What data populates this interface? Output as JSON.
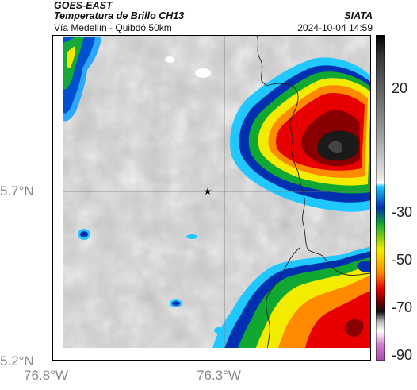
{
  "header": {
    "satellite": "GOES-EAST",
    "product": "Temperatura de Brillo CH13",
    "region": "Vía Medellín - Quibdó 50km",
    "source": "SIATA",
    "timestamp": "2024-10-04 14:59"
  },
  "map": {
    "x_ticks": [
      "76.8°W",
      "76.3°W"
    ],
    "y_ticks": [
      "5.7°N",
      "5.2°N"
    ],
    "marker": "star-icon"
  },
  "colorbar": {
    "ticks": [
      "20",
      "-30",
      "-50",
      "-70",
      "-90"
    ],
    "colors": {
      "magenta": "#a64aa6",
      "black": "#111111",
      "dark_red": "#6e0000",
      "red": "#e40000",
      "orange": "#ff8a00",
      "yellow": "#f5ee00",
      "green": "#10b030",
      "blue": "#0040c8",
      "cyan": "#20c8ff",
      "gray": "#b0b0b0",
      "white": "#ffffff"
    }
  }
}
